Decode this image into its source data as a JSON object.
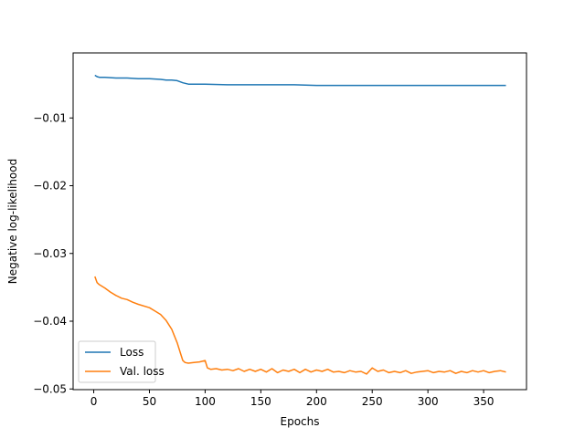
{
  "chart_data": {
    "type": "line",
    "xlabel": "Epochs",
    "ylabel": "Negative log-likelihood",
    "xlim": [
      -18.5,
      388.5
    ],
    "ylim": [
      -0.0501,
      -0.0004
    ],
    "xticks": [
      0,
      50,
      100,
      150,
      200,
      250,
      300,
      350
    ],
    "yticks": [
      -0.01,
      -0.02,
      -0.03,
      -0.04,
      -0.05
    ],
    "xtick_labels": [
      "0",
      "50",
      "100",
      "150",
      "200",
      "250",
      "300",
      "350"
    ],
    "ytick_labels": [
      "−0.01",
      "−0.02",
      "−0.03",
      "−0.04",
      "−0.05"
    ],
    "grid": false,
    "legend_position": "lower-left",
    "series": [
      {
        "name": "Loss",
        "color": "#1f77b4",
        "x": [
          1,
          3,
          5,
          10,
          20,
          30,
          40,
          50,
          60,
          65,
          70,
          75,
          80,
          85,
          90,
          100,
          120,
          150,
          180,
          200,
          230,
          250,
          280,
          300,
          320,
          340,
          360,
          370
        ],
        "y": [
          -0.0037,
          -0.0039,
          -0.004,
          -0.004,
          -0.0041,
          -0.0041,
          -0.0042,
          -0.0042,
          -0.0043,
          -0.0044,
          -0.0044,
          -0.0045,
          -0.0048,
          -0.005,
          -0.005,
          -0.005,
          -0.0051,
          -0.0051,
          -0.0051,
          -0.0052,
          -0.0052,
          -0.0052,
          -0.0052,
          -0.0052,
          -0.0052,
          -0.0052,
          -0.0052,
          -0.0052
        ]
      },
      {
        "name": "Val. loss",
        "color": "#ff7f0e",
        "x": [
          1,
          3,
          5,
          10,
          15,
          20,
          25,
          30,
          35,
          40,
          50,
          55,
          60,
          65,
          70,
          75,
          78,
          80,
          82,
          85,
          90,
          95,
          100,
          102,
          105,
          110,
          115,
          120,
          125,
          130,
          135,
          140,
          145,
          150,
          155,
          160,
          165,
          170,
          175,
          180,
          185,
          190,
          195,
          200,
          205,
          210,
          215,
          220,
          225,
          230,
          235,
          240,
          245,
          250,
          255,
          260,
          265,
          270,
          275,
          280,
          285,
          290,
          295,
          300,
          305,
          310,
          315,
          320,
          325,
          330,
          335,
          340,
          345,
          350,
          355,
          360,
          365,
          370
        ],
        "y": [
          -0.0334,
          -0.0343,
          -0.0346,
          -0.0351,
          -0.0357,
          -0.0362,
          -0.0366,
          -0.0368,
          -0.0372,
          -0.0375,
          -0.038,
          -0.0385,
          -0.039,
          -0.0399,
          -0.0412,
          -0.0432,
          -0.0448,
          -0.0458,
          -0.0461,
          -0.0462,
          -0.0461,
          -0.046,
          -0.0458,
          -0.0469,
          -0.0471,
          -0.047,
          -0.0472,
          -0.0471,
          -0.0473,
          -0.047,
          -0.0474,
          -0.0471,
          -0.0474,
          -0.0471,
          -0.0475,
          -0.047,
          -0.0476,
          -0.0472,
          -0.0474,
          -0.0471,
          -0.0476,
          -0.0471,
          -0.0475,
          -0.0472,
          -0.0474,
          -0.0471,
          -0.0475,
          -0.0474,
          -0.0476,
          -0.0473,
          -0.0475,
          -0.0474,
          -0.0478,
          -0.0469,
          -0.0474,
          -0.0472,
          -0.0476,
          -0.0474,
          -0.0476,
          -0.0473,
          -0.0477,
          -0.0475,
          -0.0474,
          -0.0473,
          -0.0476,
          -0.0474,
          -0.0475,
          -0.0473,
          -0.0477,
          -0.0474,
          -0.0476,
          -0.0473,
          -0.0475,
          -0.0473,
          -0.0476,
          -0.0474,
          -0.0473,
          -0.0475
        ]
      }
    ]
  },
  "legend": {
    "items": [
      {
        "label": "Loss",
        "color": "#1f77b4"
      },
      {
        "label": "Val. loss",
        "color": "#ff7f0e"
      }
    ]
  }
}
